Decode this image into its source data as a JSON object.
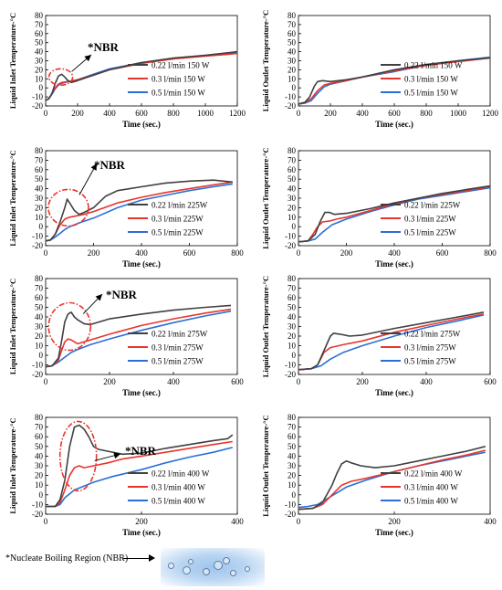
{
  "colors": {
    "dark": "#404040",
    "red": "#e8352e",
    "blue": "#2a6fd6",
    "circle": "#e8352e"
  },
  "footnote": "*Nucleate Boiling Region (NBR)",
  "chart_data": [
    {
      "type": "line",
      "id": "r1l",
      "xlabel": "Time (sec.)",
      "ylabel": "Liquid Inlet Temperature-°C",
      "xlim": [
        0,
        1200
      ],
      "xticks": [
        0,
        200,
        400,
        600,
        800,
        1000,
        1200
      ],
      "ylim": [
        -20,
        80
      ],
      "yticks": [
        -20,
        -10,
        0,
        10,
        20,
        30,
        40,
        50,
        60,
        70,
        80
      ],
      "legend": "bottom-right",
      "annotation": "*NBR",
      "series": [
        {
          "name": "0.22 l/min 150 W",
          "x": [
            0,
            20,
            40,
            60,
            80,
            100,
            120,
            140,
            160,
            200,
            300,
            400,
            600,
            800,
            1000,
            1200
          ],
          "y": [
            -14,
            -12,
            -6,
            5,
            13,
            15,
            12,
            8,
            6,
            8,
            14,
            20,
            28,
            33,
            36,
            40
          ]
        },
        {
          "name": "0.3 l/min 150 W",
          "x": [
            0,
            20,
            40,
            60,
            80,
            100,
            140,
            200,
            300,
            400,
            600,
            800,
            1000,
            1200
          ],
          "y": [
            -14,
            -12,
            -6,
            0,
            4,
            6,
            7,
            9,
            14,
            20,
            27,
            32,
            35,
            38
          ]
        },
        {
          "name": "0.5 l/min 150 W",
          "x": [
            0,
            20,
            40,
            60,
            80,
            100,
            140,
            200,
            300,
            400,
            600,
            800,
            1000,
            1200
          ],
          "y": [
            -14,
            -12,
            -7,
            -1,
            3,
            5,
            7,
            9,
            15,
            21,
            28,
            32,
            36,
            39
          ]
        }
      ]
    },
    {
      "type": "line",
      "id": "r1r",
      "xlabel": "Time (sec.)",
      "ylabel": "Liquid Outlet Temperature-°C",
      "xlim": [
        0,
        1200
      ],
      "xticks": [
        0,
        200,
        400,
        600,
        800,
        1000,
        1200
      ],
      "ylim": [
        -20,
        80
      ],
      "yticks": [
        -20,
        -10,
        0,
        10,
        20,
        30,
        40,
        50,
        60,
        70,
        80
      ],
      "legend": "bottom-right",
      "series": [
        {
          "name": "0.22 l/min 150 W",
          "x": [
            0,
            40,
            70,
            100,
            120,
            150,
            200,
            300,
            400,
            600,
            800,
            1000,
            1200
          ],
          "y": [
            -18,
            -16,
            -10,
            2,
            7,
            8,
            7,
            9,
            12,
            20,
            26,
            30,
            33
          ]
        },
        {
          "name": "0.3 l/min 150 W",
          "x": [
            0,
            40,
            80,
            120,
            160,
            200,
            300,
            400,
            600,
            800,
            1000,
            1200
          ],
          "y": [
            -18,
            -16,
            -12,
            -3,
            3,
            5,
            8,
            12,
            19,
            25,
            29,
            33
          ]
        },
        {
          "name": "0.5 l/min 150 W",
          "x": [
            0,
            40,
            80,
            120,
            160,
            200,
            300,
            400,
            600,
            800,
            1000,
            1200
          ],
          "y": [
            -18,
            -17,
            -14,
            -6,
            1,
            4,
            8,
            12,
            18,
            25,
            30,
            34
          ]
        }
      ]
    },
    {
      "type": "line",
      "id": "r2l",
      "xlabel": "Time (sec.)",
      "ylabel": "Liquid Inlet Temperature-°C",
      "xlim": [
        0,
        800
      ],
      "xticks": [
        0,
        200,
        400,
        600,
        800
      ],
      "ylim": [
        -20,
        80
      ],
      "yticks": [
        -20,
        -10,
        0,
        10,
        20,
        30,
        40,
        50,
        60,
        70,
        80
      ],
      "legend": "bottom-right",
      "annotation": "*NBR",
      "series": [
        {
          "name": "0.22 l/min 225W",
          "x": [
            0,
            20,
            40,
            60,
            80,
            90,
            100,
            120,
            140,
            160,
            200,
            250,
            300,
            400,
            500,
            600,
            700,
            780
          ],
          "y": [
            -15,
            -14,
            -8,
            5,
            20,
            29,
            25,
            17,
            13,
            15,
            20,
            32,
            38,
            42,
            46,
            48,
            49,
            47
          ]
        },
        {
          "name": "0.3 l/min 225W",
          "x": [
            0,
            20,
            40,
            60,
            80,
            100,
            120,
            160,
            200,
            300,
            400,
            500,
            600,
            700,
            780
          ],
          "y": [
            -15,
            -14,
            -8,
            2,
            8,
            10,
            11,
            13,
            16,
            25,
            31,
            36,
            40,
            44,
            47
          ]
        },
        {
          "name": "0.5 l/min 225W",
          "x": [
            0,
            20,
            40,
            60,
            80,
            100,
            140,
            200,
            300,
            400,
            500,
            600,
            700,
            780
          ],
          "y": [
            -15,
            -14,
            -11,
            -7,
            -3,
            0,
            4,
            9,
            20,
            28,
            33,
            38,
            42,
            45
          ]
        }
      ]
    },
    {
      "type": "line",
      "id": "r2r",
      "xlabel": "Time (sec.)",
      "ylabel": "Liquid Outlet Temperature-°C",
      "xlim": [
        0,
        800
      ],
      "xticks": [
        0,
        200,
        400,
        600,
        800
      ],
      "ylim": [
        -20,
        80
      ],
      "yticks": [
        -20,
        -10,
        0,
        10,
        20,
        30,
        40,
        50,
        60,
        70,
        80
      ],
      "legend": "bottom-right",
      "series": [
        {
          "name": "0.22 l/min 225W",
          "x": [
            0,
            40,
            70,
            90,
            110,
            130,
            150,
            200,
            300,
            400,
            500,
            600,
            700,
            800
          ],
          "y": [
            -16,
            -15,
            -8,
            5,
            15,
            15,
            13,
            14,
            19,
            25,
            30,
            35,
            39,
            43
          ]
        },
        {
          "name": "0.3 l/min 225W",
          "x": [
            0,
            40,
            60,
            80,
            100,
            130,
            160,
            200,
            300,
            400,
            500,
            600,
            700,
            800
          ],
          "y": [
            -16,
            -15,
            -8,
            0,
            5,
            6,
            8,
            10,
            17,
            24,
            30,
            34,
            38,
            42
          ]
        },
        {
          "name": "0.5 l/min 225W",
          "x": [
            0,
            40,
            70,
            100,
            140,
            200,
            300,
            400,
            500,
            600,
            700,
            800
          ],
          "y": [
            -16,
            -15,
            -13,
            -6,
            2,
            8,
            16,
            23,
            29,
            33,
            37,
            41
          ]
        }
      ]
    },
    {
      "type": "line",
      "id": "r3l",
      "xlabel": "Time (sec.)",
      "ylabel": "Liquid Inlet Temperature-°C",
      "xlim": [
        0,
        600
      ],
      "xticks": [
        0,
        200,
        400,
        600
      ],
      "ylim": [
        -20,
        80
      ],
      "yticks": [
        -20,
        -10,
        0,
        10,
        20,
        30,
        40,
        50,
        60,
        70,
        80
      ],
      "legend": "bottom-right",
      "annotation": "*NBR",
      "series": [
        {
          "name": "0.22 l/min 275W",
          "x": [
            0,
            20,
            40,
            50,
            60,
            70,
            80,
            90,
            100,
            120,
            140,
            200,
            300,
            400,
            500,
            580
          ],
          "y": [
            -12,
            -11,
            -3,
            15,
            35,
            43,
            45,
            40,
            37,
            33,
            32,
            38,
            43,
            47,
            50,
            52
          ]
        },
        {
          "name": "0.3 l/min 275W",
          "x": [
            0,
            20,
            40,
            50,
            60,
            70,
            80,
            100,
            120,
            160,
            200,
            300,
            400,
            500,
            580
          ],
          "y": [
            -12,
            -11,
            -5,
            5,
            14,
            17,
            16,
            12,
            14,
            18,
            22,
            31,
            38,
            44,
            48
          ]
        },
        {
          "name": "0.5 l/min 275W",
          "x": [
            0,
            20,
            40,
            60,
            80,
            100,
            140,
            200,
            300,
            400,
            500,
            580
          ],
          "y": [
            -12,
            -11,
            -7,
            -2,
            3,
            6,
            11,
            17,
            26,
            34,
            41,
            46
          ]
        }
      ]
    },
    {
      "type": "line",
      "id": "r3r",
      "xlabel": "Time (sec.)",
      "ylabel": "Liquid Outlet Temperature-°C",
      "xlim": [
        0,
        600
      ],
      "xticks": [
        0,
        200,
        400,
        600
      ],
      "ylim": [
        -20,
        80
      ],
      "yticks": [
        -20,
        -10,
        0,
        10,
        20,
        30,
        40,
        50,
        60,
        70,
        80
      ],
      "legend": "bottom-right",
      "series": [
        {
          "name": "0.22 l/min 275W",
          "x": [
            0,
            40,
            60,
            80,
            100,
            110,
            130,
            160,
            200,
            300,
            400,
            500,
            580
          ],
          "y": [
            -15,
            -14,
            -10,
            5,
            20,
            23,
            22,
            20,
            21,
            28,
            34,
            40,
            45
          ]
        },
        {
          "name": "0.3 l/min 275W",
          "x": [
            0,
            40,
            60,
            80,
            100,
            140,
            200,
            300,
            400,
            500,
            580
          ],
          "y": [
            -15,
            -14,
            -10,
            3,
            8,
            11,
            15,
            24,
            31,
            38,
            43
          ]
        },
        {
          "name": "0.5 l/min 275W",
          "x": [
            0,
            40,
            70,
            100,
            140,
            200,
            300,
            400,
            500,
            580
          ],
          "y": [
            -15,
            -14,
            -11,
            -4,
            3,
            10,
            20,
            29,
            36,
            42
          ]
        }
      ]
    },
    {
      "type": "line",
      "id": "r4l",
      "xlabel": "Time (sec.)",
      "ylabel": "Liquid Inlet Temperature-°C",
      "xlim": [
        0,
        400
      ],
      "xticks": [
        0,
        200,
        400
      ],
      "ylim": [
        -20,
        80
      ],
      "yticks": [
        -20,
        -10,
        0,
        10,
        20,
        30,
        40,
        50,
        60,
        70,
        80
      ],
      "legend": "bottom-right",
      "annotation": "*NBR",
      "series": [
        {
          "name": "0.22 l/min 400 W",
          "x": [
            0,
            20,
            30,
            40,
            50,
            60,
            70,
            80,
            90,
            100,
            110,
            130,
            160,
            200,
            250,
            300,
            350,
            380,
            390
          ],
          "y": [
            -12,
            -12,
            -5,
            15,
            50,
            70,
            72,
            68,
            60,
            50,
            47,
            45,
            42,
            43,
            48,
            52,
            56,
            58,
            62
          ]
        },
        {
          "name": "0.3 l/min 400 W",
          "x": [
            0,
            20,
            30,
            40,
            50,
            60,
            70,
            80,
            100,
            130,
            160,
            200,
            250,
            300,
            350,
            390
          ],
          "y": [
            -12,
            -12,
            -8,
            5,
            20,
            28,
            30,
            28,
            30,
            33,
            37,
            40,
            44,
            48,
            52,
            55
          ]
        },
        {
          "name": "0.5 l/min 400 W",
          "x": [
            0,
            20,
            30,
            40,
            60,
            80,
            100,
            140,
            200,
            250,
            300,
            350,
            390
          ],
          "y": [
            -12,
            -12,
            -10,
            -3,
            5,
            9,
            13,
            19,
            26,
            33,
            39,
            44,
            49
          ]
        }
      ]
    },
    {
      "type": "line",
      "id": "r4r",
      "xlabel": "Time (sec.)",
      "ylabel": "Liquid Outlet Temperature-°C",
      "xlim": [
        0,
        400
      ],
      "xticks": [
        0,
        200,
        400
      ],
      "ylim": [
        -20,
        80
      ],
      "yticks": [
        -20,
        -10,
        0,
        10,
        20,
        30,
        40,
        50,
        60,
        70,
        80
      ],
      "legend": "bottom-right",
      "series": [
        {
          "name": "0.22 l/min 400 W",
          "x": [
            0,
            30,
            50,
            70,
            80,
            90,
            100,
            110,
            130,
            160,
            200,
            250,
            300,
            350,
            390
          ],
          "y": [
            -15,
            -14,
            -8,
            10,
            22,
            32,
            35,
            33,
            30,
            28,
            30,
            35,
            40,
            45,
            50
          ]
        },
        {
          "name": "0.3 l/min 400 W",
          "x": [
            0,
            30,
            50,
            70,
            90,
            110,
            140,
            200,
            250,
            300,
            350,
            390
          ],
          "y": [
            -15,
            -14,
            -10,
            0,
            10,
            14,
            17,
            24,
            30,
            36,
            41,
            46
          ]
        },
        {
          "name": "0.5 l/min 400 W",
          "x": [
            0,
            20,
            40,
            60,
            80,
            100,
            140,
            200,
            250,
            300,
            350,
            390
          ],
          "y": [
            -13,
            -12,
            -10,
            -4,
            2,
            8,
            15,
            24,
            30,
            35,
            40,
            44
          ]
        }
      ]
    }
  ]
}
